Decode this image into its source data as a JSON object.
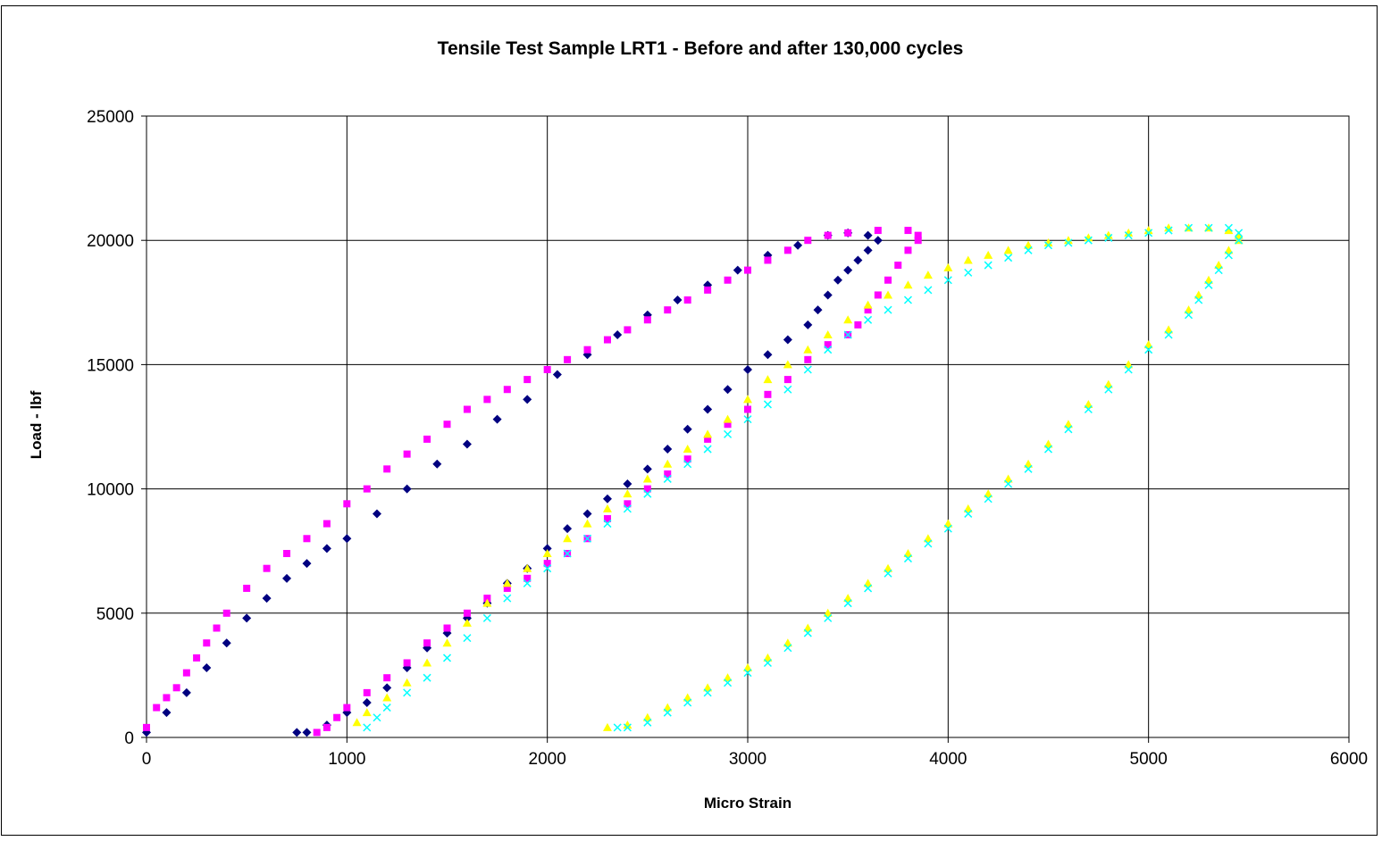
{
  "chart_data": {
    "type": "scatter",
    "title": "Tensile Test Sample LRT1 - Before and after 130,000 cycles",
    "xlabel": "Micro Strain",
    "ylabel": "Load  - lbf",
    "xlim": [
      0,
      6000
    ],
    "ylim": [
      0,
      25000
    ],
    "xticks": [
      0,
      1000,
      2000,
      3000,
      4000,
      5000,
      6000
    ],
    "yticks": [
      0,
      5000,
      10000,
      15000,
      20000,
      25000
    ],
    "grid": true,
    "legend": "none",
    "series": [
      {
        "color": "#000080",
        "marker": "diamond",
        "points": [
          [
            0,
            200
          ],
          [
            100,
            1000
          ],
          [
            200,
            1800
          ],
          [
            300,
            2800
          ],
          [
            400,
            3800
          ],
          [
            500,
            4800
          ],
          [
            600,
            5600
          ],
          [
            700,
            6400
          ],
          [
            800,
            7000
          ],
          [
            900,
            7600
          ],
          [
            1000,
            8000
          ],
          [
            1150,
            9000
          ],
          [
            1300,
            10000
          ],
          [
            1450,
            11000
          ],
          [
            1600,
            11800
          ],
          [
            1750,
            12800
          ],
          [
            1900,
            13600
          ],
          [
            2050,
            14600
          ],
          [
            2200,
            15400
          ],
          [
            2350,
            16200
          ],
          [
            2500,
            17000
          ],
          [
            2650,
            17600
          ],
          [
            2800,
            18200
          ],
          [
            2950,
            18800
          ],
          [
            3100,
            19400
          ],
          [
            3250,
            19800
          ],
          [
            3400,
            20200
          ],
          [
            3500,
            20300
          ],
          [
            3600,
            20200
          ],
          [
            3650,
            20000
          ],
          [
            3600,
            19600
          ],
          [
            3550,
            19200
          ],
          [
            3500,
            18800
          ],
          [
            3450,
            18400
          ],
          [
            3400,
            17800
          ],
          [
            3350,
            17200
          ],
          [
            3300,
            16600
          ],
          [
            3200,
            16000
          ],
          [
            3100,
            15400
          ],
          [
            3000,
            14800
          ],
          [
            2900,
            14000
          ],
          [
            2800,
            13200
          ],
          [
            2700,
            12400
          ],
          [
            2600,
            11600
          ],
          [
            2500,
            10800
          ],
          [
            2400,
            10200
          ],
          [
            2300,
            9600
          ],
          [
            2200,
            9000
          ],
          [
            2100,
            8400
          ],
          [
            2000,
            7600
          ],
          [
            1900,
            6800
          ],
          [
            1800,
            6200
          ],
          [
            1700,
            5400
          ],
          [
            1600,
            4800
          ],
          [
            1500,
            4200
          ],
          [
            1400,
            3600
          ],
          [
            1300,
            2800
          ],
          [
            1200,
            2000
          ],
          [
            1100,
            1400
          ],
          [
            1000,
            1000
          ],
          [
            900,
            500
          ],
          [
            800,
            200
          ],
          [
            750,
            200
          ]
        ]
      },
      {
        "color": "#FF00FF",
        "marker": "square",
        "points": [
          [
            0,
            400
          ],
          [
            50,
            1200
          ],
          [
            100,
            1600
          ],
          [
            150,
            2000
          ],
          [
            200,
            2600
          ],
          [
            250,
            3200
          ],
          [
            300,
            3800
          ],
          [
            350,
            4400
          ],
          [
            400,
            5000
          ],
          [
            500,
            6000
          ],
          [
            600,
            6800
          ],
          [
            700,
            7400
          ],
          [
            800,
            8000
          ],
          [
            900,
            8600
          ],
          [
            1000,
            9400
          ],
          [
            1100,
            10000
          ],
          [
            1200,
            10800
          ],
          [
            1300,
            11400
          ],
          [
            1400,
            12000
          ],
          [
            1500,
            12600
          ],
          [
            1600,
            13200
          ],
          [
            1700,
            13600
          ],
          [
            1800,
            14000
          ],
          [
            1900,
            14400
          ],
          [
            2000,
            14800
          ],
          [
            2100,
            15200
          ],
          [
            2200,
            15600
          ],
          [
            2300,
            16000
          ],
          [
            2400,
            16400
          ],
          [
            2500,
            16800
          ],
          [
            2600,
            17200
          ],
          [
            2700,
            17600
          ],
          [
            2800,
            18000
          ],
          [
            2900,
            18400
          ],
          [
            3000,
            18800
          ],
          [
            3100,
            19200
          ],
          [
            3200,
            19600
          ],
          [
            3300,
            20000
          ],
          [
            3400,
            20200
          ],
          [
            3500,
            20300
          ],
          [
            3650,
            20400
          ],
          [
            3800,
            20400
          ],
          [
            3850,
            20200
          ],
          [
            3850,
            20000
          ],
          [
            3800,
            19600
          ],
          [
            3750,
            19000
          ],
          [
            3700,
            18400
          ],
          [
            3650,
            17800
          ],
          [
            3600,
            17200
          ],
          [
            3550,
            16600
          ],
          [
            3500,
            16200
          ],
          [
            3400,
            15800
          ],
          [
            3300,
            15200
          ],
          [
            3200,
            14400
          ],
          [
            3100,
            13800
          ],
          [
            3000,
            13200
          ],
          [
            2900,
            12600
          ],
          [
            2800,
            12000
          ],
          [
            2700,
            11200
          ],
          [
            2600,
            10600
          ],
          [
            2500,
            10000
          ],
          [
            2400,
            9400
          ],
          [
            2300,
            8800
          ],
          [
            2200,
            8000
          ],
          [
            2100,
            7400
          ],
          [
            2000,
            7000
          ],
          [
            1900,
            6400
          ],
          [
            1800,
            6000
          ],
          [
            1700,
            5600
          ],
          [
            1600,
            5000
          ],
          [
            1500,
            4400
          ],
          [
            1400,
            3800
          ],
          [
            1300,
            3000
          ],
          [
            1200,
            2400
          ],
          [
            1100,
            1800
          ],
          [
            1000,
            1200
          ],
          [
            950,
            800
          ],
          [
            900,
            400
          ],
          [
            850,
            200
          ]
        ]
      },
      {
        "color": "#FFFF00",
        "marker": "triangle",
        "points": [
          [
            1050,
            600
          ],
          [
            1100,
            1000
          ],
          [
            1200,
            1600
          ],
          [
            1300,
            2200
          ],
          [
            1400,
            3000
          ],
          [
            1500,
            3800
          ],
          [
            1600,
            4600
          ],
          [
            1700,
            5400
          ],
          [
            1800,
            6200
          ],
          [
            1900,
            6800
          ],
          [
            2000,
            7400
          ],
          [
            2100,
            8000
          ],
          [
            2200,
            8600
          ],
          [
            2300,
            9200
          ],
          [
            2400,
            9800
          ],
          [
            2500,
            10400
          ],
          [
            2600,
            11000
          ],
          [
            2700,
            11600
          ],
          [
            2800,
            12200
          ],
          [
            2900,
            12800
          ],
          [
            3000,
            13600
          ],
          [
            3100,
            14400
          ],
          [
            3200,
            15000
          ],
          [
            3300,
            15600
          ],
          [
            3400,
            16200
          ],
          [
            3500,
            16800
          ],
          [
            3600,
            17400
          ],
          [
            3700,
            17800
          ],
          [
            3800,
            18200
          ],
          [
            3900,
            18600
          ],
          [
            4000,
            18900
          ],
          [
            4100,
            19200
          ],
          [
            4200,
            19400
          ],
          [
            4300,
            19600
          ],
          [
            4400,
            19800
          ],
          [
            4500,
            19900
          ],
          [
            4600,
            20000
          ],
          [
            4700,
            20100
          ],
          [
            4800,
            20200
          ],
          [
            4900,
            20300
          ],
          [
            5000,
            20400
          ],
          [
            5100,
            20500
          ],
          [
            5200,
            20500
          ],
          [
            5300,
            20500
          ],
          [
            5400,
            20400
          ],
          [
            5450,
            20200
          ],
          [
            5450,
            20000
          ],
          [
            5400,
            19600
          ],
          [
            5350,
            19000
          ],
          [
            5300,
            18400
          ],
          [
            5250,
            17800
          ],
          [
            5200,
            17200
          ],
          [
            5100,
            16400
          ],
          [
            5000,
            15800
          ],
          [
            4900,
            15000
          ],
          [
            4800,
            14200
          ],
          [
            4700,
            13400
          ],
          [
            4600,
            12600
          ],
          [
            4500,
            11800
          ],
          [
            4400,
            11000
          ],
          [
            4300,
            10400
          ],
          [
            4200,
            9800
          ],
          [
            4100,
            9200
          ],
          [
            4000,
            8600
          ],
          [
            3900,
            8000
          ],
          [
            3800,
            7400
          ],
          [
            3700,
            6800
          ],
          [
            3600,
            6200
          ],
          [
            3500,
            5600
          ],
          [
            3400,
            5000
          ],
          [
            3300,
            4400
          ],
          [
            3200,
            3800
          ],
          [
            3100,
            3200
          ],
          [
            3000,
            2800
          ],
          [
            2900,
            2400
          ],
          [
            2800,
            2000
          ],
          [
            2700,
            1600
          ],
          [
            2600,
            1200
          ],
          [
            2500,
            800
          ],
          [
            2400,
            500
          ],
          [
            2300,
            400
          ]
        ]
      },
      {
        "color": "#00FFFF",
        "marker": "x",
        "points": [
          [
            1100,
            400
          ],
          [
            1150,
            800
          ],
          [
            1200,
            1200
          ],
          [
            1300,
            1800
          ],
          [
            1400,
            2400
          ],
          [
            1500,
            3200
          ],
          [
            1600,
            4000
          ],
          [
            1700,
            4800
          ],
          [
            1800,
            5600
          ],
          [
            1900,
            6200
          ],
          [
            2000,
            6800
          ],
          [
            2100,
            7400
          ],
          [
            2200,
            8000
          ],
          [
            2300,
            8600
          ],
          [
            2400,
            9200
          ],
          [
            2500,
            9800
          ],
          [
            2600,
            10400
          ],
          [
            2700,
            11000
          ],
          [
            2800,
            11600
          ],
          [
            2900,
            12200
          ],
          [
            3000,
            12800
          ],
          [
            3100,
            13400
          ],
          [
            3200,
            14000
          ],
          [
            3300,
            14800
          ],
          [
            3400,
            15600
          ],
          [
            3500,
            16200
          ],
          [
            3600,
            16800
          ],
          [
            3700,
            17200
          ],
          [
            3800,
            17600
          ],
          [
            3900,
            18000
          ],
          [
            4000,
            18400
          ],
          [
            4100,
            18700
          ],
          [
            4200,
            19000
          ],
          [
            4300,
            19300
          ],
          [
            4400,
            19600
          ],
          [
            4500,
            19800
          ],
          [
            4600,
            19900
          ],
          [
            4700,
            20000
          ],
          [
            4800,
            20100
          ],
          [
            4900,
            20200
          ],
          [
            5000,
            20300
          ],
          [
            5100,
            20400
          ],
          [
            5200,
            20500
          ],
          [
            5300,
            20500
          ],
          [
            5400,
            20500
          ],
          [
            5450,
            20300
          ],
          [
            5450,
            20000
          ],
          [
            5400,
            19400
          ],
          [
            5350,
            18800
          ],
          [
            5300,
            18200
          ],
          [
            5250,
            17600
          ],
          [
            5200,
            17000
          ],
          [
            5100,
            16200
          ],
          [
            5000,
            15600
          ],
          [
            4900,
            14800
          ],
          [
            4800,
            14000
          ],
          [
            4700,
            13200
          ],
          [
            4600,
            12400
          ],
          [
            4500,
            11600
          ],
          [
            4400,
            10800
          ],
          [
            4300,
            10200
          ],
          [
            4200,
            9600
          ],
          [
            4100,
            9000
          ],
          [
            4000,
            8400
          ],
          [
            3900,
            7800
          ],
          [
            3800,
            7200
          ],
          [
            3700,
            6600
          ],
          [
            3600,
            6000
          ],
          [
            3500,
            5400
          ],
          [
            3400,
            4800
          ],
          [
            3300,
            4200
          ],
          [
            3200,
            3600
          ],
          [
            3100,
            3000
          ],
          [
            3000,
            2600
          ],
          [
            2900,
            2200
          ],
          [
            2800,
            1800
          ],
          [
            2700,
            1400
          ],
          [
            2600,
            1000
          ],
          [
            2500,
            600
          ],
          [
            2400,
            400
          ],
          [
            2350,
            400
          ]
        ]
      }
    ]
  }
}
